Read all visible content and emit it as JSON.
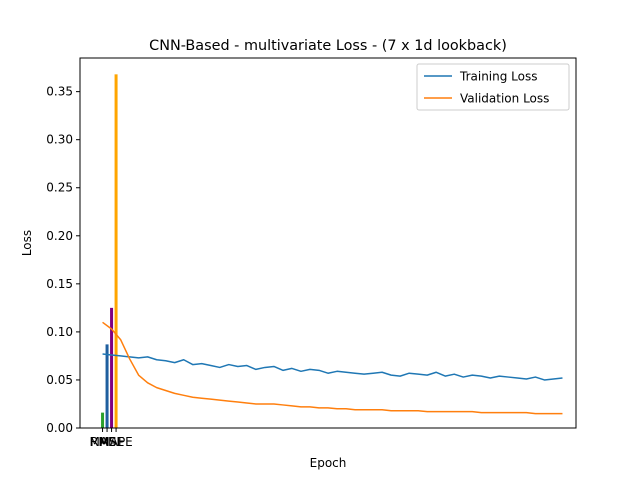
{
  "chart_data": {
    "type": "line",
    "title": "CNN-Based - multivariate Loss - (7 x 1d lookback)",
    "xlabel": "Epoch",
    "ylabel": "Loss",
    "ylim": [
      0,
      0.385
    ],
    "xlim": [
      -2.5,
      52.5
    ],
    "yticks": [
      0.0,
      0.05,
      0.1,
      0.15,
      0.2,
      0.25,
      0.3,
      0.35
    ],
    "ytick_labels": [
      "0.00",
      "0.05",
      "0.10",
      "0.15",
      "0.20",
      "0.25",
      "0.30",
      "0.35"
    ],
    "grid": false,
    "legend_position": "top-right",
    "series": [
      {
        "name": "Training Loss",
        "color": "#1f77b4",
        "values": [
          0.077,
          0.076,
          0.075,
          0.074,
          0.073,
          0.074,
          0.071,
          0.07,
          0.068,
          0.071,
          0.066,
          0.067,
          0.065,
          0.063,
          0.066,
          0.064,
          0.065,
          0.061,
          0.063,
          0.064,
          0.06,
          0.062,
          0.059,
          0.061,
          0.06,
          0.057,
          0.059,
          0.058,
          0.057,
          0.056,
          0.057,
          0.058,
          0.055,
          0.054,
          0.057,
          0.056,
          0.055,
          0.058,
          0.054,
          0.056,
          0.053,
          0.055,
          0.054,
          0.052,
          0.054,
          0.053,
          0.052,
          0.051,
          0.053,
          0.05,
          0.051,
          0.052
        ]
      },
      {
        "name": "Validation Loss",
        "color": "#ff7f0e",
        "values": [
          0.11,
          0.103,
          0.092,
          0.072,
          0.055,
          0.047,
          0.042,
          0.039,
          0.036,
          0.034,
          0.032,
          0.031,
          0.03,
          0.029,
          0.028,
          0.027,
          0.026,
          0.025,
          0.025,
          0.025,
          0.024,
          0.023,
          0.022,
          0.022,
          0.021,
          0.021,
          0.02,
          0.02,
          0.019,
          0.019,
          0.019,
          0.019,
          0.018,
          0.018,
          0.018,
          0.018,
          0.017,
          0.017,
          0.017,
          0.017,
          0.017,
          0.017,
          0.016,
          0.016,
          0.016,
          0.016,
          0.016,
          0.016,
          0.015,
          0.015,
          0.015,
          0.015
        ]
      }
    ],
    "bars": [
      {
        "label": "MAE",
        "x": 0.0,
        "value": 0.016,
        "color": "#2ca02c"
      },
      {
        "label": "RMSE",
        "x": 0.5,
        "value": 0.087,
        "color": "#1f5f9f"
      },
      {
        "label": "MSE",
        "x": 1.0,
        "value": 0.125,
        "color": "#800080"
      },
      {
        "label": "MAPE",
        "x": 1.5,
        "value": 0.368,
        "color": "#ffa500"
      }
    ]
  }
}
